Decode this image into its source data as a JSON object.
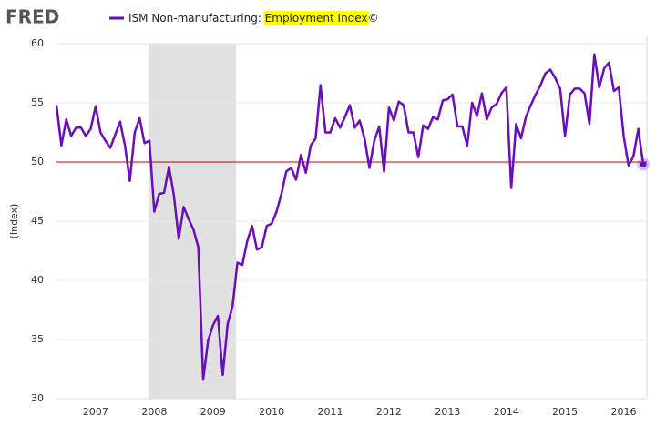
{
  "logo": "FRED",
  "chart_data": {
    "type": "line",
    "title_parts": [
      "ISM Non-manufacturing: ",
      "Employment Index",
      "©"
    ],
    "y_label": "(Index)",
    "categories": [
      null,
      null,
      null,
      null,
      null,
      null,
      null,
      null,
      "2007",
      null,
      null,
      null,
      null,
      null,
      null,
      null,
      null,
      null,
      null,
      null,
      "2008",
      null,
      null,
      null,
      null,
      null,
      null,
      null,
      null,
      null,
      null,
      null,
      "2009",
      null,
      null,
      null,
      null,
      null,
      null,
      null,
      null,
      null,
      null,
      null,
      "2010",
      null,
      null,
      null,
      null,
      null,
      null,
      null,
      null,
      null,
      null,
      null,
      "2011",
      null,
      null,
      null,
      null,
      null,
      null,
      null,
      null,
      null,
      null,
      null,
      "2012",
      null,
      null,
      null,
      null,
      null,
      null,
      null,
      null,
      null,
      null,
      null,
      "2013",
      null,
      null,
      null,
      null,
      null,
      null,
      null,
      null,
      null,
      null,
      null,
      "2014",
      null,
      null,
      null,
      null,
      null,
      null,
      null,
      null,
      null,
      null,
      null,
      "2015",
      null,
      null,
      null,
      null,
      null,
      null,
      null,
      null,
      null,
      null,
      null,
      "2016",
      null,
      null,
      null,
      null
    ],
    "series": [
      {
        "name": "Employment Index",
        "color": "#6a0dbd",
        "values": [
          54.8,
          51.4,
          53.6,
          52.2,
          52.9,
          52.9,
          52.2,
          52.8,
          54.7,
          52.5,
          51.8,
          51.2,
          52.3,
          53.4,
          51.4,
          48.4,
          52.5,
          53.7,
          51.6,
          51.8,
          45.8,
          47.3,
          47.4,
          49.6,
          47.2,
          43.5,
          46.2,
          45.2,
          44.3,
          42.8,
          31.6,
          34.9,
          36.2,
          37.0,
          32.0,
          36.3,
          37.8,
          41.5,
          41.3,
          43.3,
          44.6,
          42.6,
          42.8,
          44.6,
          44.8,
          45.8,
          47.3,
          49.2,
          49.5,
          48.5,
          50.6,
          49.1,
          51.4,
          52.0,
          56.5,
          52.5,
          52.5,
          53.7,
          52.9,
          53.8,
          54.8,
          52.9,
          53.5,
          52.0,
          49.5,
          51.8,
          53.0,
          49.2,
          54.6,
          53.5,
          55.1,
          54.8,
          52.5,
          52.5,
          50.4,
          53.1,
          52.8,
          53.8,
          53.6,
          55.2,
          55.3,
          55.7,
          53.0,
          53.0,
          51.4,
          55.0,
          53.9,
          55.8,
          53.6,
          54.6,
          54.9,
          55.8,
          56.3,
          47.8,
          53.2,
          52.0,
          53.8,
          54.8,
          55.7,
          56.5,
          57.5,
          57.8,
          57.1,
          56.2,
          52.2,
          55.7,
          56.2,
          56.2,
          55.8,
          53.2,
          59.1,
          56.3,
          57.9,
          58.4,
          56.0,
          56.3,
          52.2,
          49.7,
          50.5,
          52.8,
          49.8
        ]
      }
    ],
    "reference_line": {
      "value": 50,
      "color": "#cc0000"
    },
    "ylim": [
      30,
      60
    ],
    "yticks": [
      30,
      35,
      40,
      45,
      50,
      55,
      60
    ],
    "grid": true
  }
}
